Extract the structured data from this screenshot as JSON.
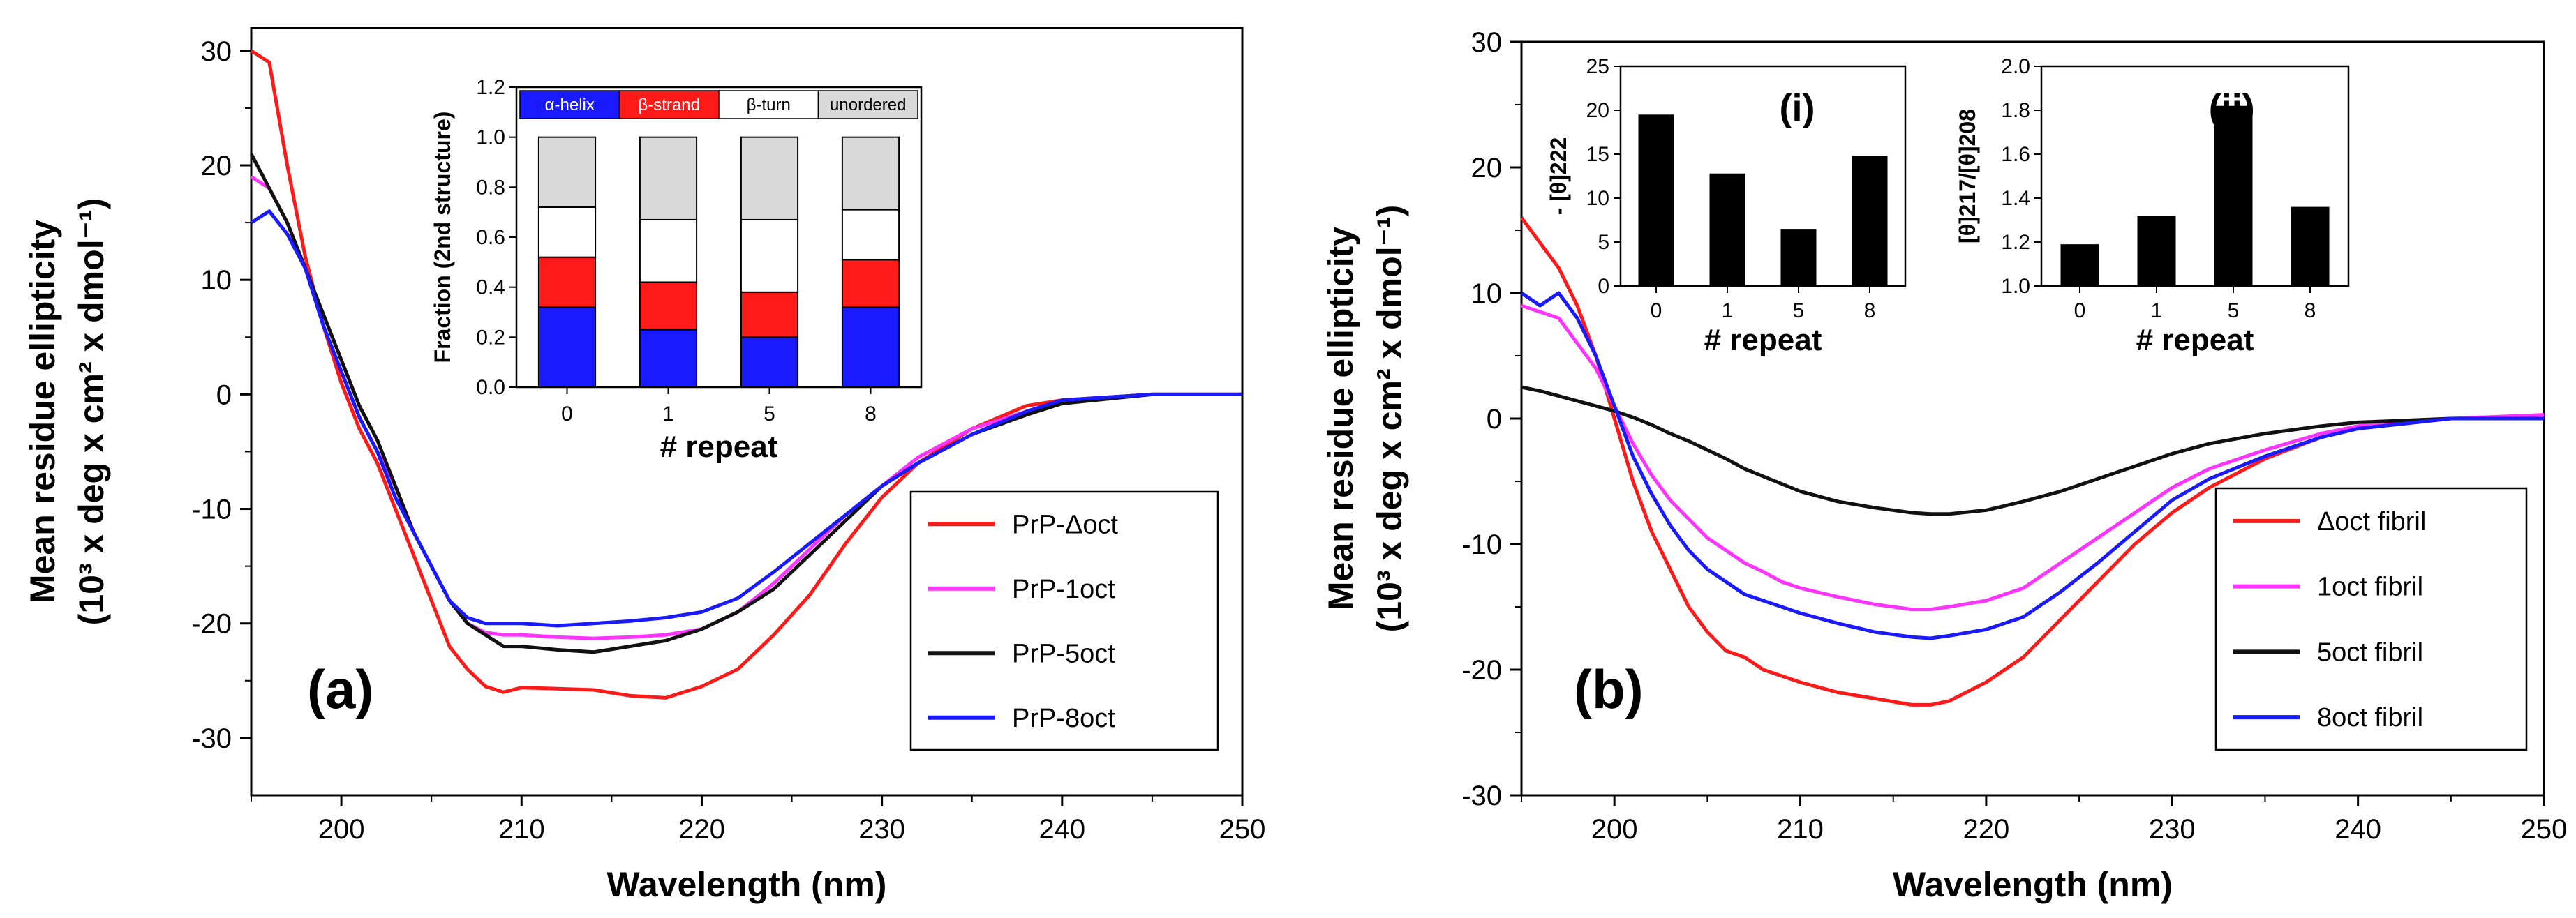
{
  "chart_data": [
    {
      "type": "line",
      "panel_label": "(a)",
      "xlabel": "Wavelength (nm)",
      "ylabel_line1": "Mean residue ellipticity",
      "ylabel_line2": "(10³ x deg x cm² x dmol⁻¹)",
      "xlim": [
        195,
        250
      ],
      "ylim": [
        -35,
        32
      ],
      "x_ticks": [
        200,
        210,
        220,
        230,
        240,
        250
      ],
      "y_ticks": [
        -30,
        -20,
        -10,
        0,
        10,
        20,
        30
      ],
      "series": [
        {
          "name": "PrP-Δoct",
          "color": "#ff1a1a",
          "x": [
            195,
            196,
            197,
            198,
            199,
            200,
            201,
            202,
            203,
            204,
            205,
            206,
            207,
            208,
            209,
            210,
            212,
            214,
            216,
            218,
            220,
            222,
            224,
            226,
            228,
            230,
            232,
            235,
            238,
            240,
            245,
            250
          ],
          "y": [
            30,
            29,
            20,
            12,
            6,
            1,
            -3,
            -6,
            -10,
            -14,
            -18,
            -22,
            -24,
            -25.5,
            -26,
            -25.6,
            -25.7,
            -25.8,
            -26.3,
            -26.5,
            -25.5,
            -24,
            -21,
            -17.5,
            -13,
            -9,
            -6,
            -3,
            -1,
            -0.5,
            0,
            0
          ]
        },
        {
          "name": "PrP-1oct",
          "color": "#ff33ff",
          "x": [
            195,
            196,
            197,
            198,
            199,
            200,
            201,
            202,
            203,
            204,
            205,
            206,
            207,
            208,
            209,
            210,
            212,
            214,
            216,
            218,
            220,
            222,
            224,
            226,
            228,
            230,
            232,
            235,
            238,
            240,
            245,
            250
          ],
          "y": [
            19,
            18,
            15,
            11,
            6,
            2,
            -2,
            -5,
            -8,
            -12,
            -15,
            -18,
            -20,
            -20.8,
            -21,
            -21,
            -21.2,
            -21.3,
            -21.2,
            -21,
            -20.5,
            -19,
            -16.5,
            -13.5,
            -10.5,
            -8,
            -5.5,
            -3,
            -1.5,
            -0.5,
            0,
            0
          ]
        },
        {
          "name": "PrP-5oct",
          "color": "#111111",
          "x": [
            195,
            196,
            197,
            198,
            199,
            200,
            201,
            202,
            203,
            204,
            205,
            206,
            207,
            208,
            209,
            210,
            212,
            214,
            216,
            218,
            220,
            222,
            224,
            226,
            228,
            230,
            232,
            235,
            238,
            240,
            245,
            250
          ],
          "y": [
            21,
            18,
            15,
            11,
            7,
            3,
            -1,
            -4,
            -8,
            -12,
            -15,
            -18,
            -20,
            -21,
            -22,
            -22,
            -22.3,
            -22.5,
            -22,
            -21.5,
            -20.5,
            -19,
            -17,
            -14,
            -11,
            -8,
            -6,
            -3.5,
            -1.8,
            -0.8,
            0,
            0
          ]
        },
        {
          "name": "PrP-8oct",
          "color": "#1a1aff",
          "x": [
            195,
            196,
            197,
            198,
            199,
            200,
            201,
            202,
            203,
            204,
            205,
            206,
            207,
            208,
            209,
            210,
            212,
            214,
            216,
            218,
            220,
            222,
            224,
            226,
            228,
            230,
            232,
            235,
            238,
            240,
            245,
            250
          ],
          "y": [
            15,
            16,
            14,
            11,
            6,
            2,
            -2,
            -5,
            -9,
            -12,
            -15,
            -18,
            -19.5,
            -20,
            -20,
            -20,
            -20.2,
            -20,
            -19.8,
            -19.5,
            -19,
            -17.8,
            -15.5,
            -13,
            -10.5,
            -8,
            -6,
            -3.5,
            -1.5,
            -0.5,
            0,
            0
          ]
        }
      ],
      "inset": {
        "type": "stacked_bar",
        "categories": [
          "0",
          "1",
          "5",
          "8"
        ],
        "xlabel": "# repeat",
        "ylabel": "Fraction (2nd structure)",
        "ylim": [
          0,
          1.2
        ],
        "y_ticks": [
          "0.0",
          "0.2",
          "0.4",
          "0.6",
          "0.8",
          "1.0",
          "1.2"
        ],
        "legend": [
          {
            "name": "α-helix",
            "color": "#1a1aff"
          },
          {
            "name": "β-strand",
            "color": "#ff1a1a"
          },
          {
            "name": "β-turn",
            "color": "#ffffff"
          },
          {
            "name": "unordered",
            "color": "#d9d9d9"
          }
        ],
        "series": [
          {
            "name": "α-helix",
            "values": [
              0.32,
              0.23,
              0.2,
              0.32
            ]
          },
          {
            "name": "β-strand",
            "values": [
              0.2,
              0.19,
              0.18,
              0.19
            ]
          },
          {
            "name": "β-turn",
            "values": [
              0.2,
              0.25,
              0.29,
              0.2
            ]
          },
          {
            "name": "unordered",
            "values": [
              0.28,
              0.33,
              0.33,
              0.29
            ]
          }
        ]
      }
    },
    {
      "type": "line",
      "panel_label": "(b)",
      "xlabel": "Wavelength (nm)",
      "ylabel_line1": "Mean residue ellipticity",
      "ylabel_line2": "(10³ x deg x cm² x dmol⁻¹)",
      "xlim": [
        195,
        250
      ],
      "ylim": [
        -30,
        30
      ],
      "x_ticks": [
        200,
        210,
        220,
        230,
        240,
        250
      ],
      "y_ticks": [
        -30,
        -20,
        -10,
        0,
        10,
        20,
        30
      ],
      "series": [
        {
          "name": "Δoct fibril",
          "color": "#ff1a1a",
          "x": [
            195,
            196,
            197,
            198,
            199,
            200,
            201,
            202,
            203,
            204,
            205,
            206,
            207,
            208,
            209,
            210,
            212,
            214,
            216,
            217,
            218,
            220,
            222,
            224,
            226,
            228,
            230,
            232,
            235,
            238,
            240,
            245,
            250
          ],
          "y": [
            16,
            14,
            12,
            9,
            5,
            0,
            -5,
            -9,
            -12,
            -15,
            -17,
            -18.5,
            -19,
            -20,
            -20.5,
            -21,
            -21.8,
            -22.3,
            -22.8,
            -22.8,
            -22.5,
            -21,
            -19,
            -16,
            -13,
            -10,
            -7.5,
            -5.5,
            -3.2,
            -1.5,
            -0.8,
            0,
            0
          ]
        },
        {
          "name": "1oct fibril",
          "color": "#ff33ff",
          "x": [
            195,
            196,
            197,
            198,
            199,
            200,
            201,
            202,
            203,
            204,
            205,
            206,
            207,
            208,
            209,
            210,
            212,
            214,
            216,
            217,
            218,
            220,
            222,
            224,
            226,
            228,
            230,
            232,
            235,
            238,
            240,
            245,
            250
          ],
          "y": [
            9,
            8.5,
            8,
            6,
            4,
            1,
            -2,
            -4.5,
            -6.5,
            -8,
            -9.5,
            -10.5,
            -11.5,
            -12.2,
            -13,
            -13.5,
            -14.2,
            -14.8,
            -15.2,
            -15.2,
            -15,
            -14.5,
            -13.5,
            -11.5,
            -9.5,
            -7.5,
            -5.5,
            -4,
            -2.5,
            -1.2,
            -0.6,
            0,
            0.3
          ]
        },
        {
          "name": "5oct fibril",
          "color": "#111111",
          "x": [
            195,
            196,
            197,
            198,
            199,
            200,
            201,
            202,
            203,
            204,
            205,
            206,
            207,
            208,
            209,
            210,
            212,
            214,
            216,
            217,
            218,
            220,
            222,
            224,
            226,
            228,
            230,
            232,
            235,
            238,
            240,
            245,
            250
          ],
          "y": [
            2.5,
            2.2,
            1.8,
            1.4,
            1,
            0.6,
            0.1,
            -0.5,
            -1.2,
            -1.8,
            -2.5,
            -3.2,
            -4,
            -4.6,
            -5.2,
            -5.8,
            -6.6,
            -7.1,
            -7.5,
            -7.6,
            -7.6,
            -7.3,
            -6.6,
            -5.8,
            -4.8,
            -3.8,
            -2.8,
            -2,
            -1.2,
            -0.6,
            -0.3,
            0,
            0
          ]
        },
        {
          "name": "8oct fibril",
          "color": "#1a1aff",
          "x": [
            195,
            196,
            197,
            198,
            199,
            200,
            201,
            202,
            203,
            204,
            205,
            206,
            207,
            208,
            209,
            210,
            212,
            214,
            216,
            217,
            218,
            220,
            222,
            224,
            226,
            228,
            230,
            232,
            235,
            238,
            240,
            245,
            250
          ],
          "y": [
            10,
            9,
            10,
            8,
            5,
            1,
            -3,
            -6,
            -8.5,
            -10.5,
            -12,
            -13,
            -14,
            -14.5,
            -15,
            -15.5,
            -16.3,
            -17,
            -17.4,
            -17.5,
            -17.3,
            -16.8,
            -15.8,
            -13.8,
            -11.5,
            -9,
            -6.5,
            -4.8,
            -3,
            -1.5,
            -0.8,
            0,
            0
          ]
        }
      ],
      "inset_i": {
        "type": "bar",
        "label": "(i)",
        "categories": [
          "0",
          "1",
          "5",
          "8"
        ],
        "values": [
          19.5,
          12.8,
          6.5,
          14.8
        ],
        "xlabel": "# repeat",
        "ylabel": "- [θ]222",
        "ylim": [
          0,
          25
        ],
        "y_ticks": [
          "0",
          "5",
          "10",
          "15",
          "20",
          "25"
        ]
      },
      "inset_ii": {
        "type": "bar",
        "label": "(ii)",
        "categories": [
          "0",
          "1",
          "5",
          "8"
        ],
        "values": [
          1.19,
          1.32,
          1.82,
          1.36
        ],
        "xlabel": "# repeat",
        "ylabel": "[θ]217/[θ]208",
        "ylim": [
          1.0,
          2.0
        ],
        "y_ticks": [
          "1.0",
          "1.2",
          "1.4",
          "1.6",
          "1.8",
          "2.0"
        ]
      }
    }
  ]
}
